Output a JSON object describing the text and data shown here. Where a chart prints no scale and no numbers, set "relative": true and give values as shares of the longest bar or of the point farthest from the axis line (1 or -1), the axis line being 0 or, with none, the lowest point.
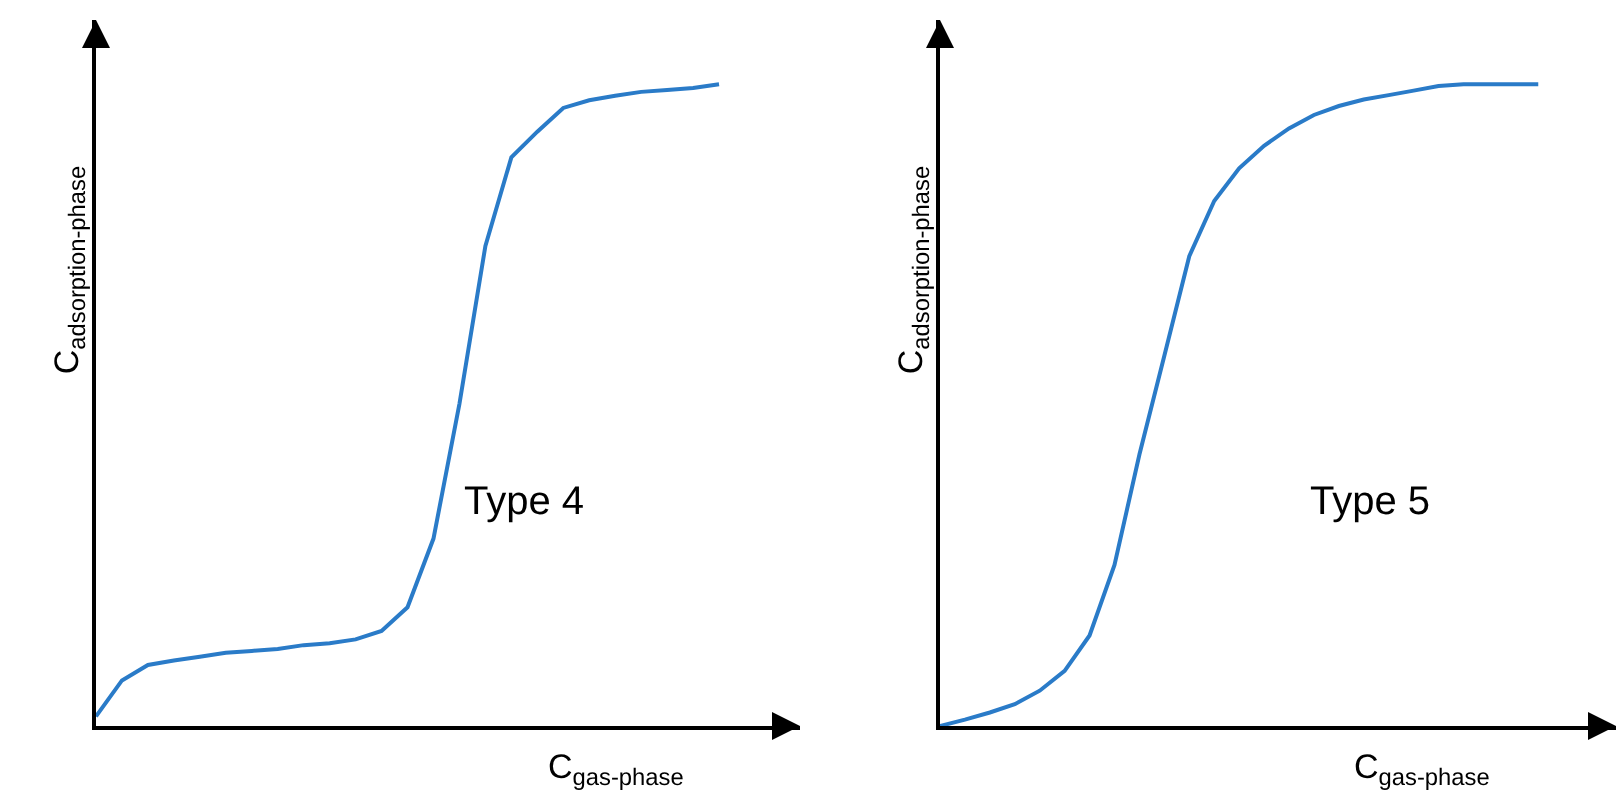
{
  "chart_data": [
    {
      "type": "line",
      "relative": true,
      "ylabel": "C$_{adsorption-phase}$",
      "xlabel": "C$_{gas-phase}$",
      "annotations": [
        "Type 4"
      ],
      "categories": [
        null,
        null,
        null,
        null,
        null,
        null,
        null,
        null,
        null,
        null,
        null,
        null,
        null,
        null,
        null,
        null,
        null,
        null,
        null,
        null,
        null,
        null,
        null,
        null,
        null
      ],
      "series": [
        {
          "color": "#2a7bc8",
          "values": [
            0.015,
            0.071,
            0.095,
            0.102,
            0.108,
            0.114,
            0.117,
            0.12,
            0.126,
            0.129,
            0.135,
            0.148,
            0.185,
            0.292,
            0.502,
            0.748,
            0.886,
            0.926,
            0.963,
            0.975,
            0.982,
            0.988,
            0.991,
            0.994,
            1
          ]
        }
      ],
      "grid": false,
      "marker": "none",
      "line_style": "solid"
    },
    {
      "type": "line",
      "relative": true,
      "ylabel": "C$_{adsorption-phase}$",
      "xlabel": "C$_{gas-phase}$",
      "annotations": [
        "Type 5"
      ],
      "categories": [
        null,
        null,
        null,
        null,
        null,
        null,
        null,
        null,
        null,
        null,
        null,
        null,
        null,
        null,
        null,
        null,
        null,
        null,
        null,
        null,
        null,
        null,
        null,
        null,
        null
      ],
      "series": [
        {
          "color": "#2a7bc8",
          "values": [
            0,
            0.01,
            0.021,
            0.034,
            0.055,
            0.086,
            0.141,
            0.251,
            0.423,
            0.577,
            0.732,
            0.818,
            0.869,
            0.904,
            0.931,
            0.952,
            0.966,
            0.976,
            0.983,
            0.99,
            0.997,
            1,
            1,
            1,
            1
          ]
        }
      ],
      "grid": false,
      "marker": "none",
      "line_style": "solid"
    }
  ]
}
